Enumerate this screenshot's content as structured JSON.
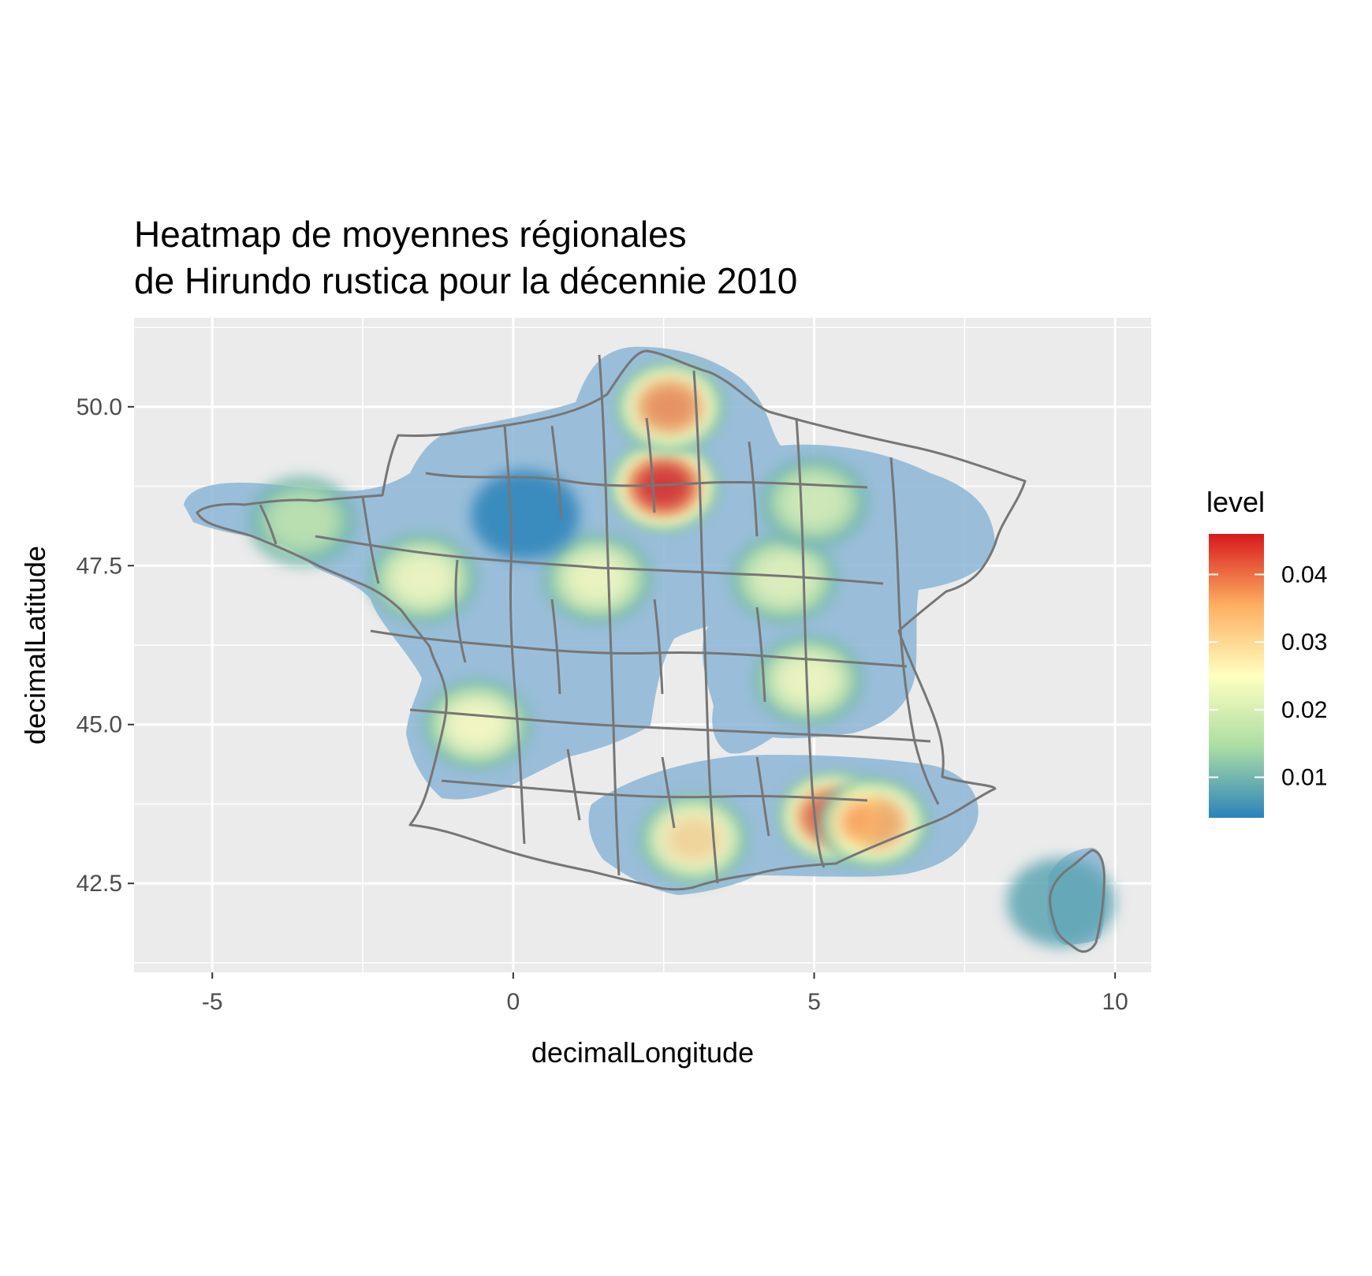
{
  "chart_data": {
    "type": "heatmap",
    "title_lines": [
      "Heatmap de moyennes régionales",
      "de Hirundo rustica pour la décennie 2010"
    ],
    "xlabel": "decimalLongitude",
    "ylabel": "decimalLatitude",
    "xlim": [
      -6.3,
      10.6
    ],
    "ylim": [
      41.1,
      51.4
    ],
    "x_ticks": [
      -5,
      0,
      5,
      10
    ],
    "x_tick_labels": [
      "-5",
      "0",
      "5",
      "10"
    ],
    "y_ticks": [
      42.5,
      45.0,
      47.5,
      50.0
    ],
    "y_tick_labels": [
      "42.5",
      "45.0",
      "47.5",
      "50.0"
    ],
    "grid": true,
    "legend": {
      "title": "level",
      "placement": "right",
      "range": [
        0.004,
        0.046
      ],
      "breaks": [
        0.01,
        0.02,
        0.03,
        0.04
      ],
      "break_labels": [
        "0.01",
        "0.02",
        "0.03",
        "0.04"
      ],
      "palette": [
        "#2b83ba",
        "#abdda4",
        "#ffffbf",
        "#fdae61",
        "#d7191c"
      ]
    },
    "density_hotspots": [
      {
        "lon": 2.5,
        "lat": 48.75,
        "level": 0.045
      },
      {
        "lon": 2.6,
        "lat": 50.0,
        "level": 0.038
      },
      {
        "lon": 5.3,
        "lat": 43.55,
        "level": 0.042
      },
      {
        "lon": 6.0,
        "lat": 43.45,
        "level": 0.036
      },
      {
        "lon": 3.0,
        "lat": 43.2,
        "level": 0.03
      },
      {
        "lon": -0.6,
        "lat": 45.0,
        "level": 0.025
      },
      {
        "lon": -1.5,
        "lat": 47.3,
        "level": 0.024
      },
      {
        "lon": 1.4,
        "lat": 47.3,
        "level": 0.024
      },
      {
        "lon": 4.9,
        "lat": 45.7,
        "level": 0.024
      },
      {
        "lon": 4.5,
        "lat": 47.3,
        "level": 0.022
      },
      {
        "lon": 5.0,
        "lat": 48.5,
        "level": 0.02
      },
      {
        "lon": -3.5,
        "lat": 48.2,
        "level": 0.017
      },
      {
        "lon": 0.2,
        "lat": 48.3,
        "level": 0.004
      },
      {
        "lon": 9.1,
        "lat": 42.2,
        "level": 0.008
      }
    ]
  }
}
